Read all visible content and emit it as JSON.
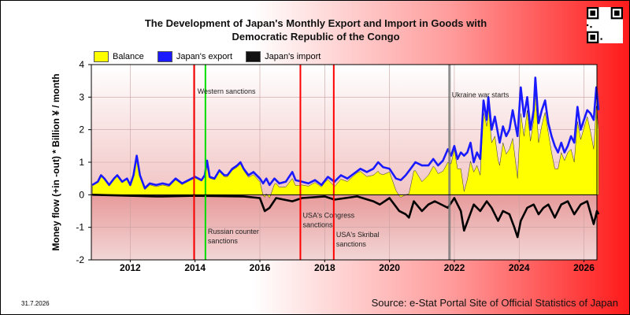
{
  "title_line1": "The Development of Japan's Monthly Export and Import in Goods with",
  "title_line2": "Democratic Republic of the Congo",
  "date_stamp": "31.7.2026",
  "source": "Source: e-Stat Portal Site of Official Statistics of Japan",
  "chart_data": {
    "type": "area",
    "ylabel": "Money flow (+in -out) * Billion ¥ / month",
    "ylim": [
      -2,
      4
    ],
    "yticks": [
      "4",
      "3",
      "2",
      "1",
      "0",
      "-1",
      "-2"
    ],
    "xlim": [
      2010.8,
      2026.4
    ],
    "xticks": [
      "2012",
      "2014",
      "2016",
      "2018",
      "2020",
      "2022",
      "2024",
      "2026"
    ],
    "legend": [
      "Balance",
      "Japan's export",
      "Japan's import"
    ],
    "colors": {
      "balance": "#ffff00",
      "export": "#1a1aff",
      "import": "#000000"
    },
    "series": [
      {
        "name": "Japan's export",
        "points": [
          [
            2010.83,
            0.3
          ],
          [
            2011.0,
            0.4
          ],
          [
            2011.1,
            0.6
          ],
          [
            2011.2,
            0.5
          ],
          [
            2011.35,
            0.3
          ],
          [
            2011.5,
            0.5
          ],
          [
            2011.6,
            0.6
          ],
          [
            2011.75,
            0.4
          ],
          [
            2011.9,
            0.5
          ],
          [
            2012.0,
            0.3
          ],
          [
            2012.1,
            0.6
          ],
          [
            2012.2,
            1.2
          ],
          [
            2012.3,
            0.6
          ],
          [
            2012.45,
            0.2
          ],
          [
            2012.6,
            0.35
          ],
          [
            2012.8,
            0.3
          ],
          [
            2013.0,
            0.35
          ],
          [
            2013.2,
            0.3
          ],
          [
            2013.4,
            0.5
          ],
          [
            2013.6,
            0.35
          ],
          [
            2013.8,
            0.45
          ],
          [
            2014.0,
            0.55
          ],
          [
            2014.2,
            0.45
          ],
          [
            2014.3,
            0.6
          ],
          [
            2014.37,
            1.05
          ],
          [
            2014.45,
            0.55
          ],
          [
            2014.6,
            0.5
          ],
          [
            2014.75,
            0.75
          ],
          [
            2014.9,
            0.6
          ],
          [
            2015.0,
            0.6
          ],
          [
            2015.15,
            0.8
          ],
          [
            2015.3,
            0.9
          ],
          [
            2015.4,
            1.0
          ],
          [
            2015.5,
            0.8
          ],
          [
            2015.65,
            0.6
          ],
          [
            2015.8,
            0.7
          ],
          [
            2016.0,
            0.5
          ],
          [
            2016.1,
            0.35
          ],
          [
            2016.2,
            0.5
          ],
          [
            2016.3,
            0.3
          ],
          [
            2016.45,
            0.5
          ],
          [
            2016.6,
            0.35
          ],
          [
            2016.8,
            0.4
          ],
          [
            2017.0,
            0.7
          ],
          [
            2017.1,
            0.45
          ],
          [
            2017.3,
            0.4
          ],
          [
            2017.5,
            0.35
          ],
          [
            2017.7,
            0.45
          ],
          [
            2017.9,
            0.3
          ],
          [
            2018.1,
            0.55
          ],
          [
            2018.3,
            0.4
          ],
          [
            2018.5,
            0.6
          ],
          [
            2018.7,
            0.5
          ],
          [
            2018.9,
            0.65
          ],
          [
            2019.1,
            0.8
          ],
          [
            2019.3,
            0.7
          ],
          [
            2019.5,
            0.8
          ],
          [
            2019.65,
            1.0
          ],
          [
            2019.8,
            0.85
          ],
          [
            2020.0,
            0.8
          ],
          [
            2020.2,
            0.5
          ],
          [
            2020.35,
            0.45
          ],
          [
            2020.5,
            0.6
          ],
          [
            2020.65,
            0.8
          ],
          [
            2020.8,
            1.0
          ],
          [
            2021.0,
            0.9
          ],
          [
            2021.2,
            0.9
          ],
          [
            2021.35,
            1.1
          ],
          [
            2021.5,
            0.9
          ],
          [
            2021.65,
            1.05
          ],
          [
            2021.8,
            1.4
          ],
          [
            2021.9,
            1.2
          ],
          [
            2022.0,
            1.5
          ],
          [
            2022.1,
            1.1
          ],
          [
            2022.2,
            1.3
          ],
          [
            2022.3,
            1.2
          ],
          [
            2022.4,
            1.3
          ],
          [
            2022.5,
            1.6
          ],
          [
            2022.6,
            1.0
          ],
          [
            2022.7,
            1.3
          ],
          [
            2022.8,
            1.1
          ],
          [
            2022.9,
            2.9
          ],
          [
            2023.0,
            2.3
          ],
          [
            2023.05,
            3.0
          ],
          [
            2023.15,
            2.0
          ],
          [
            2023.25,
            2.4
          ],
          [
            2023.4,
            1.6
          ],
          [
            2023.5,
            2.1
          ],
          [
            2023.6,
            1.8
          ],
          [
            2023.7,
            2.0
          ],
          [
            2023.8,
            2.6
          ],
          [
            2023.95,
            1.8
          ],
          [
            2024.05,
            3.3
          ],
          [
            2024.15,
            2.4
          ],
          [
            2024.25,
            3.0
          ],
          [
            2024.35,
            2.0
          ],
          [
            2024.45,
            2.6
          ],
          [
            2024.5,
            3.6
          ],
          [
            2024.6,
            2.2
          ],
          [
            2024.7,
            2.6
          ],
          [
            2024.8,
            2.9
          ],
          [
            2024.9,
            2.2
          ],
          [
            2025.0,
            1.8
          ],
          [
            2025.1,
            1.5
          ],
          [
            2025.2,
            1.3
          ],
          [
            2025.3,
            1.6
          ],
          [
            2025.4,
            1.3
          ],
          [
            2025.5,
            1.5
          ],
          [
            2025.6,
            1.8
          ],
          [
            2025.7,
            1.6
          ],
          [
            2025.8,
            2.7
          ],
          [
            2025.9,
            2.0
          ],
          [
            2026.0,
            2.3
          ],
          [
            2026.1,
            2.6
          ],
          [
            2026.2,
            2.5
          ],
          [
            2026.3,
            2.3
          ],
          [
            2026.38,
            3.3
          ],
          [
            2026.45,
            2.6
          ]
        ]
      },
      {
        "name": "Japan's import",
        "points": [
          [
            2010.83,
            0.0
          ],
          [
            2012.8,
            -0.05
          ],
          [
            2013.0,
            -0.05
          ],
          [
            2014.0,
            -0.03
          ],
          [
            2015.5,
            -0.05
          ],
          [
            2016.0,
            -0.1
          ],
          [
            2016.15,
            -0.5
          ],
          [
            2016.3,
            -0.4
          ],
          [
            2016.5,
            -0.1
          ],
          [
            2017.0,
            -0.2
          ],
          [
            2017.3,
            -0.1
          ],
          [
            2018.0,
            -0.05
          ],
          [
            2018.3,
            -0.15
          ],
          [
            2019.0,
            -0.05
          ],
          [
            2019.5,
            -0.2
          ],
          [
            2019.7,
            -0.3
          ],
          [
            2020.0,
            -0.1
          ],
          [
            2020.3,
            -0.5
          ],
          [
            2020.5,
            -0.6
          ],
          [
            2020.6,
            -0.7
          ],
          [
            2020.75,
            -0.2
          ],
          [
            2021.0,
            -0.5
          ],
          [
            2021.2,
            -0.3
          ],
          [
            2021.4,
            -0.2
          ],
          [
            2021.8,
            -0.4
          ],
          [
            2022.0,
            -0.1
          ],
          [
            2022.2,
            -0.5
          ],
          [
            2022.3,
            -1.1
          ],
          [
            2022.45,
            -0.7
          ],
          [
            2022.6,
            -0.3
          ],
          [
            2022.8,
            -0.5
          ],
          [
            2023.0,
            -0.2
          ],
          [
            2023.15,
            -0.4
          ],
          [
            2023.35,
            -0.8
          ],
          [
            2023.5,
            -0.5
          ],
          [
            2023.7,
            -0.6
          ],
          [
            2023.85,
            -1.0
          ],
          [
            2023.95,
            -1.3
          ],
          [
            2024.05,
            -0.8
          ],
          [
            2024.25,
            -0.4
          ],
          [
            2024.45,
            -0.3
          ],
          [
            2024.6,
            -0.6
          ],
          [
            2024.75,
            -0.4
          ],
          [
            2024.9,
            -0.3
          ],
          [
            2025.1,
            -0.7
          ],
          [
            2025.3,
            -0.3
          ],
          [
            2025.5,
            -0.2
          ],
          [
            2025.7,
            -0.6
          ],
          [
            2025.9,
            -0.3
          ],
          [
            2026.1,
            -0.2
          ],
          [
            2026.3,
            -0.9
          ],
          [
            2026.4,
            -0.5
          ],
          [
            2026.45,
            -0.6
          ]
        ]
      }
    ],
    "events": [
      {
        "x": 2013.97,
        "color": "#ff0000",
        "label": "",
        "label_y": 0
      },
      {
        "x": 2014.32,
        "color": "#00dd00",
        "label": "Russian counter sanctions",
        "label_y": -1.2
      },
      {
        "x": 2014.0,
        "color": "none",
        "label": "Western sanctions",
        "label_y": 3.1
      },
      {
        "x": 2017.25,
        "color": "#ff0000",
        "label": "USA's Congress sanctions",
        "label_y": -0.7
      },
      {
        "x": 2018.28,
        "color": "#ff0000",
        "label": "USA's Skribal sanctions",
        "label_y": -1.3
      },
      {
        "x": 2021.85,
        "color": "#777777",
        "label": "Ukraine war starts",
        "label_y": 3.0
      }
    ]
  }
}
